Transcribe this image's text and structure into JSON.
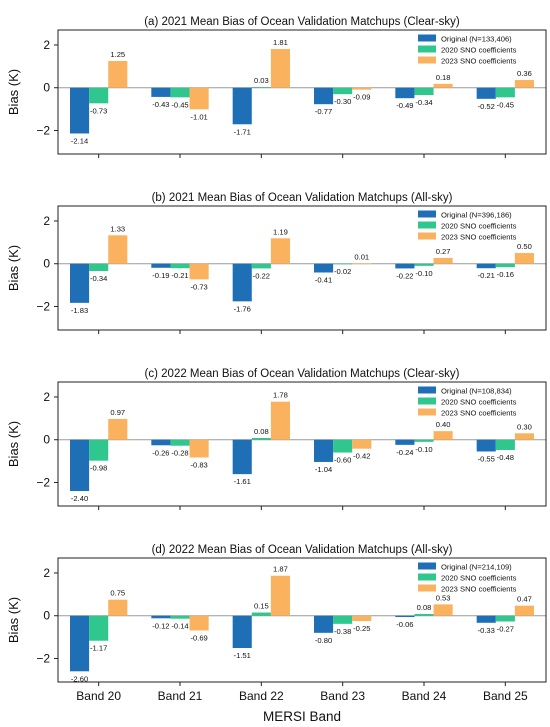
{
  "figure": {
    "xlabel": "MERSI Band",
    "categories": [
      "Band 20",
      "Band 21",
      "Band 22",
      "Band 23",
      "Band 24",
      "Band 25"
    ]
  },
  "colors": {
    "original": "#1f6fb7",
    "sno2020": "#2fc78e",
    "sno2023": "#fbb25e"
  },
  "chart_data": [
    {
      "type": "bar",
      "title": "(a) 2021 Mean Bias of Ocean Validation Matchups (Clear-sky)",
      "ylabel": "Bias (K)",
      "ylim": [
        -3.1,
        2.7
      ],
      "yticks": [
        2,
        0,
        -2
      ],
      "categories": [
        "Band 20",
        "Band 21",
        "Band 22",
        "Band 23",
        "Band 24",
        "Band 25"
      ],
      "legend_position": "top-right",
      "series": [
        {
          "name": "Original (N=133,406)",
          "values": [
            -2.14,
            -0.43,
            -1.71,
            -0.77,
            -0.49,
            -0.52
          ],
          "labels": [
            "-2.14",
            "-0.43",
            "-1.71",
            "-0.77",
            "-0.49",
            "-0.52"
          ]
        },
        {
          "name": "2020 SNO coefficients",
          "values": [
            -0.73,
            -0.45,
            0.03,
            -0.3,
            -0.34,
            -0.45
          ],
          "labels": [
            "-0.73",
            "-0.45",
            "0.03",
            "-0.30",
            "-0.34",
            "-0.45"
          ]
        },
        {
          "name": "2023 SNO coefficients",
          "values": [
            1.25,
            -1.01,
            1.81,
            -0.09,
            0.18,
            0.36
          ],
          "labels": [
            "1.25",
            "-1.01",
            "1.81",
            "-0.09",
            "0.18",
            "0.36"
          ]
        }
      ]
    },
    {
      "type": "bar",
      "title": "(b) 2021 Mean Bias of Ocean Validation Matchups (All-sky)",
      "ylabel": "Bias (K)",
      "ylim": [
        -3.1,
        2.7
      ],
      "yticks": [
        2,
        0,
        -2
      ],
      "categories": [
        "Band 20",
        "Band 21",
        "Band 22",
        "Band 23",
        "Band 24",
        "Band 25"
      ],
      "legend_position": "top-right",
      "series": [
        {
          "name": "Original (N=396,186)",
          "values": [
            -1.83,
            -0.19,
            -1.76,
            -0.41,
            -0.22,
            -0.21
          ],
          "labels": [
            "-1.83",
            "-0.19",
            "-1.76",
            "-0.41",
            "-0.22",
            "-0.21"
          ]
        },
        {
          "name": "2020 SNO coefficients",
          "values": [
            -0.34,
            -0.21,
            -0.22,
            -0.02,
            -0.1,
            -0.16
          ],
          "labels": [
            "-0.34",
            "-0.21",
            "-0.22",
            "-0.02",
            "-0.10",
            "-0.16"
          ]
        },
        {
          "name": "2023 SNO coefficients",
          "values": [
            1.33,
            -0.73,
            1.19,
            0.01,
            0.27,
            0.5
          ],
          "labels": [
            "1.33",
            "-0.73",
            "1.19",
            "0.01",
            "0.27",
            "0.50"
          ]
        }
      ]
    },
    {
      "type": "bar",
      "title": "(c) 2022 Mean Bias of Ocean Validation Matchups (Clear-sky)",
      "ylabel": "Bias (K)",
      "ylim": [
        -3.1,
        2.7
      ],
      "yticks": [
        2,
        0,
        -2
      ],
      "categories": [
        "Band 20",
        "Band 21",
        "Band 22",
        "Band 23",
        "Band 24",
        "Band 25"
      ],
      "legend_position": "top-right",
      "series": [
        {
          "name": "Original (N=108,834)",
          "values": [
            -2.4,
            -0.26,
            -1.61,
            -1.04,
            -0.24,
            -0.55
          ],
          "labels": [
            "-2.40",
            "-0.26",
            "-1.61",
            "-1.04",
            "-0.24",
            "-0.55"
          ]
        },
        {
          "name": "2020 SNO coefficients",
          "values": [
            -0.98,
            -0.28,
            0.08,
            -0.6,
            -0.1,
            -0.48
          ],
          "labels": [
            "-0.98",
            "-0.28",
            "0.08",
            "-0.60",
            "-0.10",
            "-0.48"
          ]
        },
        {
          "name": "2023 SNO coefficients",
          "values": [
            0.97,
            -0.83,
            1.78,
            -0.42,
            0.4,
            0.3
          ],
          "labels": [
            "0.97",
            "-0.83",
            "1.78",
            "-0.42",
            "0.40",
            "0.30"
          ]
        }
      ]
    },
    {
      "type": "bar",
      "title": "(d) 2022 Mean Bias of Ocean Validation Matchups (All-sky)",
      "ylabel": "Bias (K)",
      "ylim": [
        -3.1,
        2.7
      ],
      "yticks": [
        2,
        0,
        -2
      ],
      "categories": [
        "Band 20",
        "Band 21",
        "Band 22",
        "Band 23",
        "Band 24",
        "Band 25"
      ],
      "legend_position": "top-right",
      "series": [
        {
          "name": "Original (N=214,109)",
          "values": [
            -2.6,
            -0.12,
            -1.51,
            -0.8,
            -0.06,
            -0.33
          ],
          "labels": [
            "-2.60",
            "-0.12",
            "-1.51",
            "-0.80",
            "-0.06",
            "-0.33"
          ]
        },
        {
          "name": "2020 SNO coefficients",
          "values": [
            -1.17,
            -0.14,
            0.15,
            -0.38,
            0.08,
            -0.27
          ],
          "labels": [
            "-1.17",
            "-0.14",
            "0.15",
            "-0.38",
            "0.08",
            "-0.27"
          ]
        },
        {
          "name": "2023 SNO coefficients",
          "values": [
            0.75,
            -0.69,
            1.87,
            -0.25,
            0.53,
            0.47
          ],
          "labels": [
            "0.75",
            "-0.69",
            "1.87",
            "-0.25",
            "0.53",
            "0.47"
          ]
        }
      ]
    }
  ]
}
